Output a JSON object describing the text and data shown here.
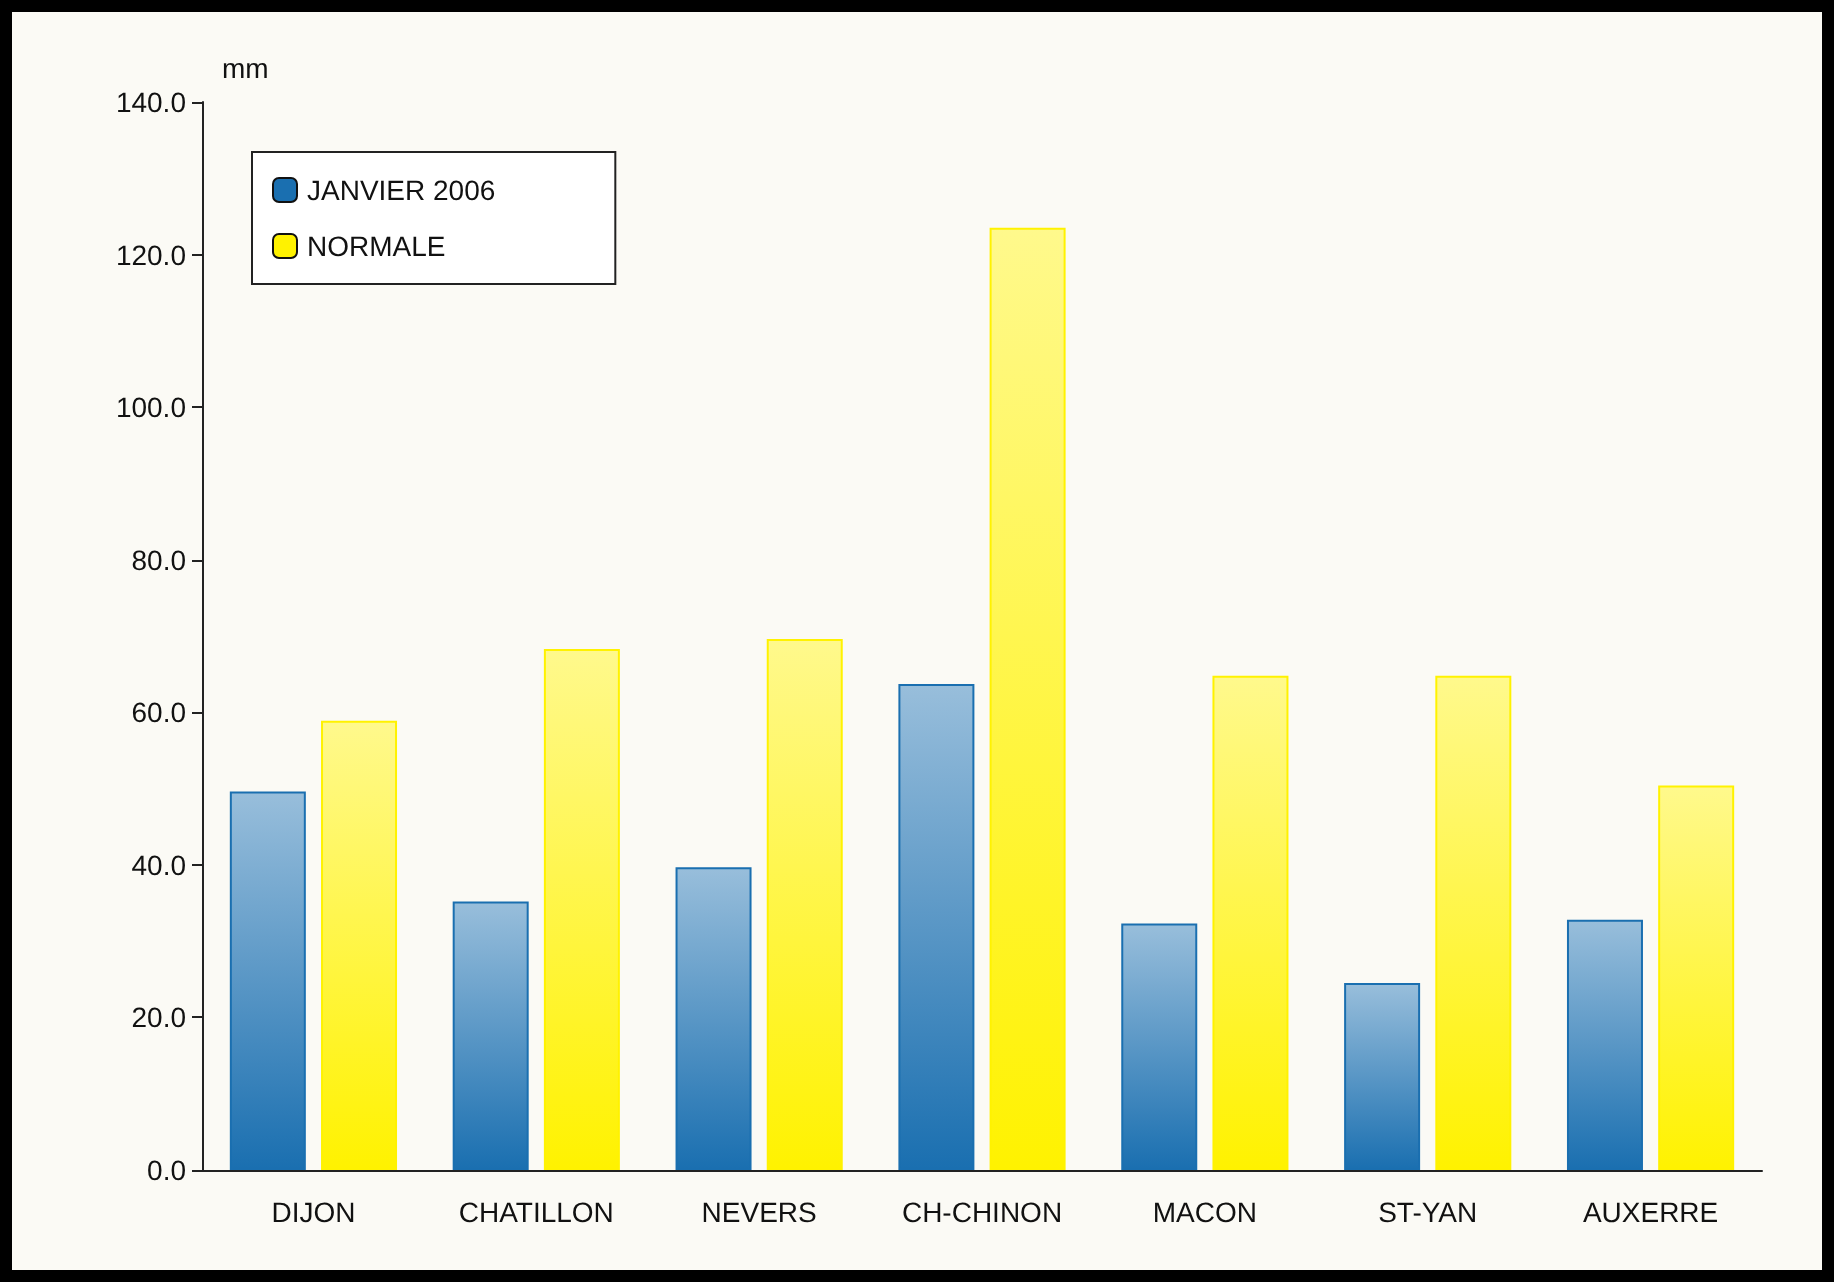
{
  "chart_data": {
    "type": "bar",
    "ylabel": "mm",
    "categories": [
      "DIJON",
      "CHATILLON",
      "NEVERS",
      "CH-CHINON",
      "MACON",
      "ST-YAN",
      "AUXERRE"
    ],
    "series": [
      {
        "name": "JANVIER 2006",
        "color": "#1a6fb0",
        "values": [
          49.6,
          35.2,
          39.7,
          63.7,
          32.3,
          24.5,
          32.8
        ]
      },
      {
        "name": "NORMALE",
        "color": "#fff200",
        "values": [
          58.9,
          68.3,
          69.6,
          123.5,
          64.8,
          64.8,
          50.4
        ]
      }
    ],
    "ylim": [
      0,
      140
    ],
    "yticks": [
      {
        "value": 0,
        "label": "0.0"
      },
      {
        "value": 20,
        "label": "20.0"
      },
      {
        "value": 40,
        "label": "40.0"
      },
      {
        "value": 60,
        "label": "60.0"
      },
      {
        "value": 80,
        "label": "80.0"
      },
      {
        "value": 100,
        "label": "100.0"
      },
      {
        "value": 120,
        "label": "120.0"
      },
      {
        "value": 140,
        "label": "140.0"
      }
    ],
    "grid": false,
    "legend": "top left"
  }
}
